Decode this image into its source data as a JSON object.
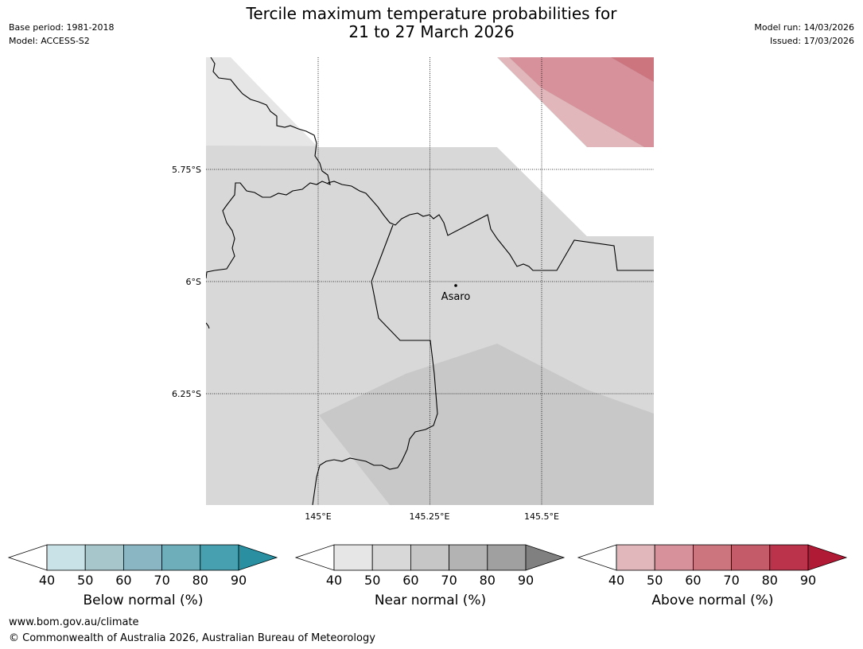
{
  "header": {
    "base_period": "Base period: 1981-2018",
    "model": "Model: ACCESS-S2",
    "title_line1": "Tercile maximum temperature probabilities for",
    "title_line2": "21 to 27 March 2026",
    "model_run": "Model run: 14/03/2026",
    "issued": "Issued: 17/03/2026"
  },
  "map": {
    "lat_labels": [
      "5.75°S",
      "6°S",
      "6.25°S"
    ],
    "lon_labels": [
      "145°E",
      "145.25°E",
      "145.5°E"
    ],
    "place": {
      "name": "Asaro",
      "lon": 145.29,
      "lat": -6.01
    }
  },
  "legends": [
    {
      "label": "Below normal (%)",
      "ticks": [
        "40",
        "50",
        "60",
        "70",
        "80",
        "90"
      ],
      "colors": [
        "#ffffff",
        "#c8e2e7",
        "#a6c6cc",
        "#8ab5c2",
        "#6eaebb",
        "#47a0af",
        "#2a8fa1"
      ]
    },
    {
      "label": "Near normal (%)",
      "ticks": [
        "40",
        "50",
        "60",
        "70",
        "80",
        "90"
      ],
      "colors": [
        "#ffffff",
        "#e6e6e6",
        "#d8d8d8",
        "#c6c6c6",
        "#b3b3b3",
        "#a0a0a0",
        "#808080"
      ]
    },
    {
      "label": "Above normal (%)",
      "ticks": [
        "40",
        "50",
        "60",
        "70",
        "80",
        "90"
      ],
      "colors": [
        "#ffffff",
        "#e2b7bb",
        "#d6919a",
        "#cc757e",
        "#c45b68",
        "#bb334b",
        "#b01a35"
      ]
    }
  ],
  "footer": {
    "url": "www.bom.gov.au/climate",
    "copyright": "© Commonwealth of Australia 2026, Australian Bureau of Meteorology"
  }
}
